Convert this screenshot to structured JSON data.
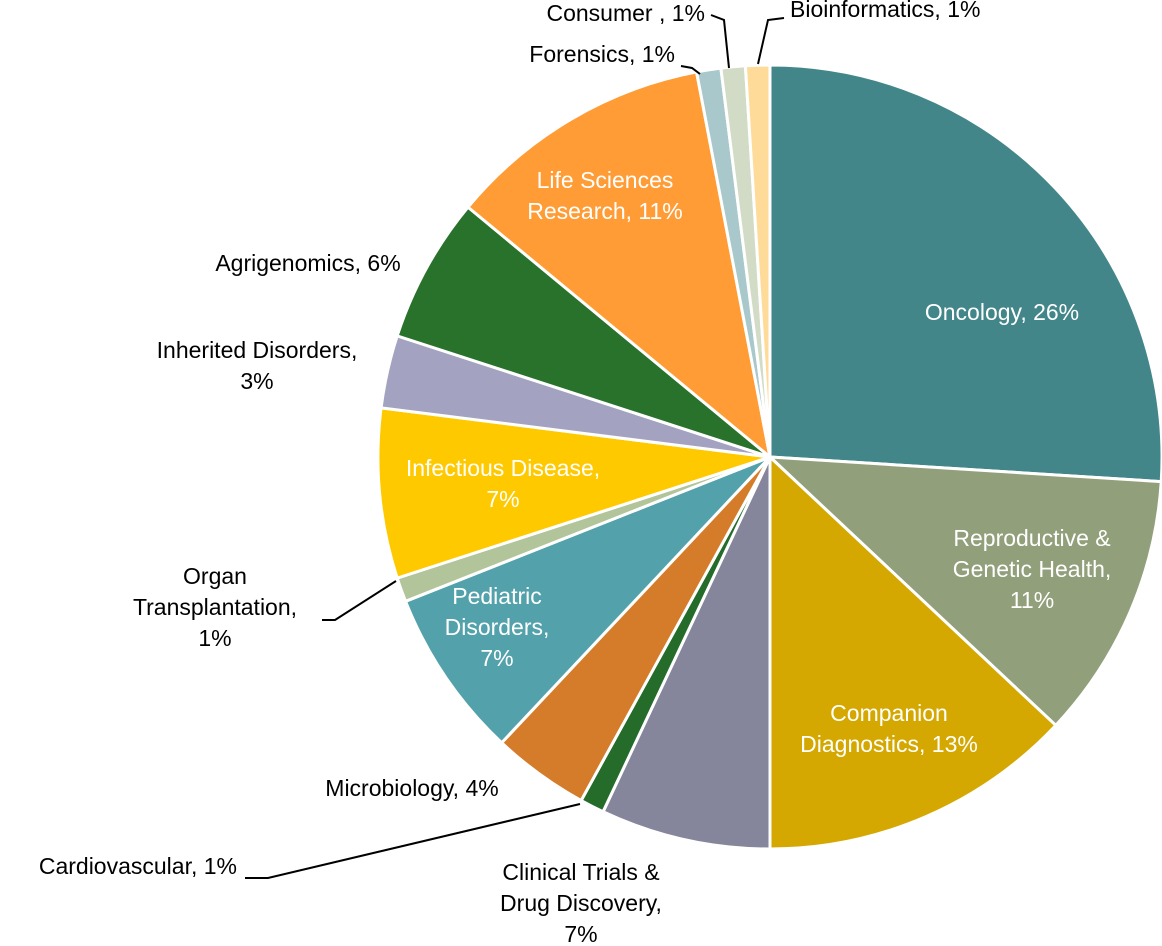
{
  "chart_data": {
    "type": "pie",
    "values": [
      26,
      11,
      13,
      7,
      1,
      4,
      7,
      1,
      7,
      3,
      6,
      11,
      1,
      1,
      1
    ],
    "labels": [
      [
        "Oncology, 26%"
      ],
      [
        "Reproductive &",
        "Genetic Health,",
        "11%"
      ],
      [
        "Companion",
        "Diagnostics, 13%"
      ],
      [
        "Clinical Trials &",
        "Drug Discovery,",
        "7%"
      ],
      [
        "Cardiovascular, 1%"
      ],
      [
        "Microbiology, 4%"
      ],
      [
        "Pediatric",
        "Disorders,",
        "7%"
      ],
      [
        "Organ",
        "Transplantation,",
        "1%"
      ],
      [
        "Infectious Disease,",
        "7%"
      ],
      [
        "Inherited Disorders,",
        "3%"
      ],
      [
        "Agrigenomics, 6%"
      ],
      [
        "Life Sciences",
        "Research, 11%"
      ],
      [
        "Forensics, 1%"
      ],
      [
        "Consumer , 1%"
      ],
      [
        "Bioinformatics, 1%"
      ]
    ],
    "colors": [
      "#43868a",
      "#919f7a",
      "#d4a800",
      "#85869c",
      "#256b2a",
      "#d47c2a",
      "#53a2ab",
      "#b2c49a",
      "#ffc900",
      "#a3a3c1",
      "#29722c",
      "#ff9c35",
      "#a9c8cc",
      "#d2dbc5",
      "#ffdb9a"
    ]
  }
}
